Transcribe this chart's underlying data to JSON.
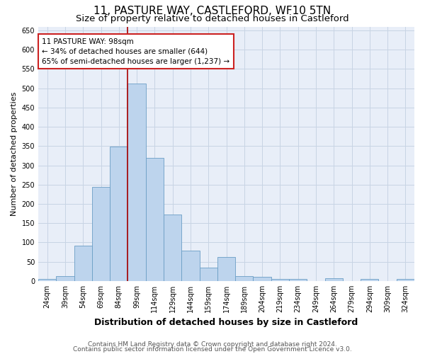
{
  "title": "11, PASTURE WAY, CASTLEFORD, WF10 5TN",
  "subtitle": "Size of property relative to detached houses in Castleford",
  "xlabel": "Distribution of detached houses by size in Castleford",
  "ylabel": "Number of detached properties",
  "categories": [
    "24sqm",
    "39sqm",
    "54sqm",
    "69sqm",
    "84sqm",
    "99sqm",
    "114sqm",
    "129sqm",
    "144sqm",
    "159sqm",
    "174sqm",
    "189sqm",
    "204sqm",
    "219sqm",
    "234sqm",
    "249sqm",
    "264sqm",
    "279sqm",
    "294sqm",
    "309sqm",
    "324sqm"
  ],
  "values": [
    5,
    13,
    92,
    245,
    348,
    512,
    320,
    172,
    78,
    35,
    63,
    13,
    10,
    5,
    5,
    0,
    7,
    0,
    5,
    0,
    5
  ],
  "bar_color": "#bdd4ed",
  "bar_edge_color": "#6a9ec5",
  "bar_edge_width": 0.6,
  "vline_color": "#aa0000",
  "annotation_line1": "11 PASTURE WAY: 98sqm",
  "annotation_line2": "← 34% of detached houses are smaller (644)",
  "annotation_line3": "65% of semi-detached houses are larger (1,237) →",
  "annotation_box_facecolor": "#ffffff",
  "annotation_box_edgecolor": "#cc2222",
  "ylim": [
    0,
    660
  ],
  "yticks": [
    0,
    50,
    100,
    150,
    200,
    250,
    300,
    350,
    400,
    450,
    500,
    550,
    600,
    650
  ],
  "grid_color": "#c8d4e4",
  "background_color": "#e8eef8",
  "footer1": "Contains HM Land Registry data © Crown copyright and database right 2024.",
  "footer2": "Contains public sector information licensed under the Open Government Licence v3.0.",
  "title_fontsize": 11,
  "subtitle_fontsize": 9.5,
  "xlabel_fontsize": 9,
  "ylabel_fontsize": 8,
  "tick_fontsize": 7,
  "annotation_fontsize": 7.5,
  "footer_fontsize": 6.5
}
